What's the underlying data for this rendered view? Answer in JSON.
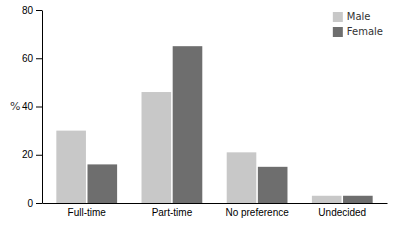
{
  "chart_data": {
    "type": "bar",
    "categories": [
      "Full-time",
      "Part-time",
      "No preference",
      "Undecided"
    ],
    "series": [
      {
        "name": "Male",
        "color": "#c8c8c8",
        "values": [
          30,
          46,
          21,
          3
        ]
      },
      {
        "name": "Female",
        "color": "#6e6e6e",
        "values": [
          16,
          65,
          15,
          3
        ]
      }
    ],
    "ylabel": "%",
    "ylim": [
      0,
      80
    ],
    "yticks": [
      0,
      20,
      40,
      60,
      80
    ],
    "grid": false,
    "legend": "upper right"
  }
}
